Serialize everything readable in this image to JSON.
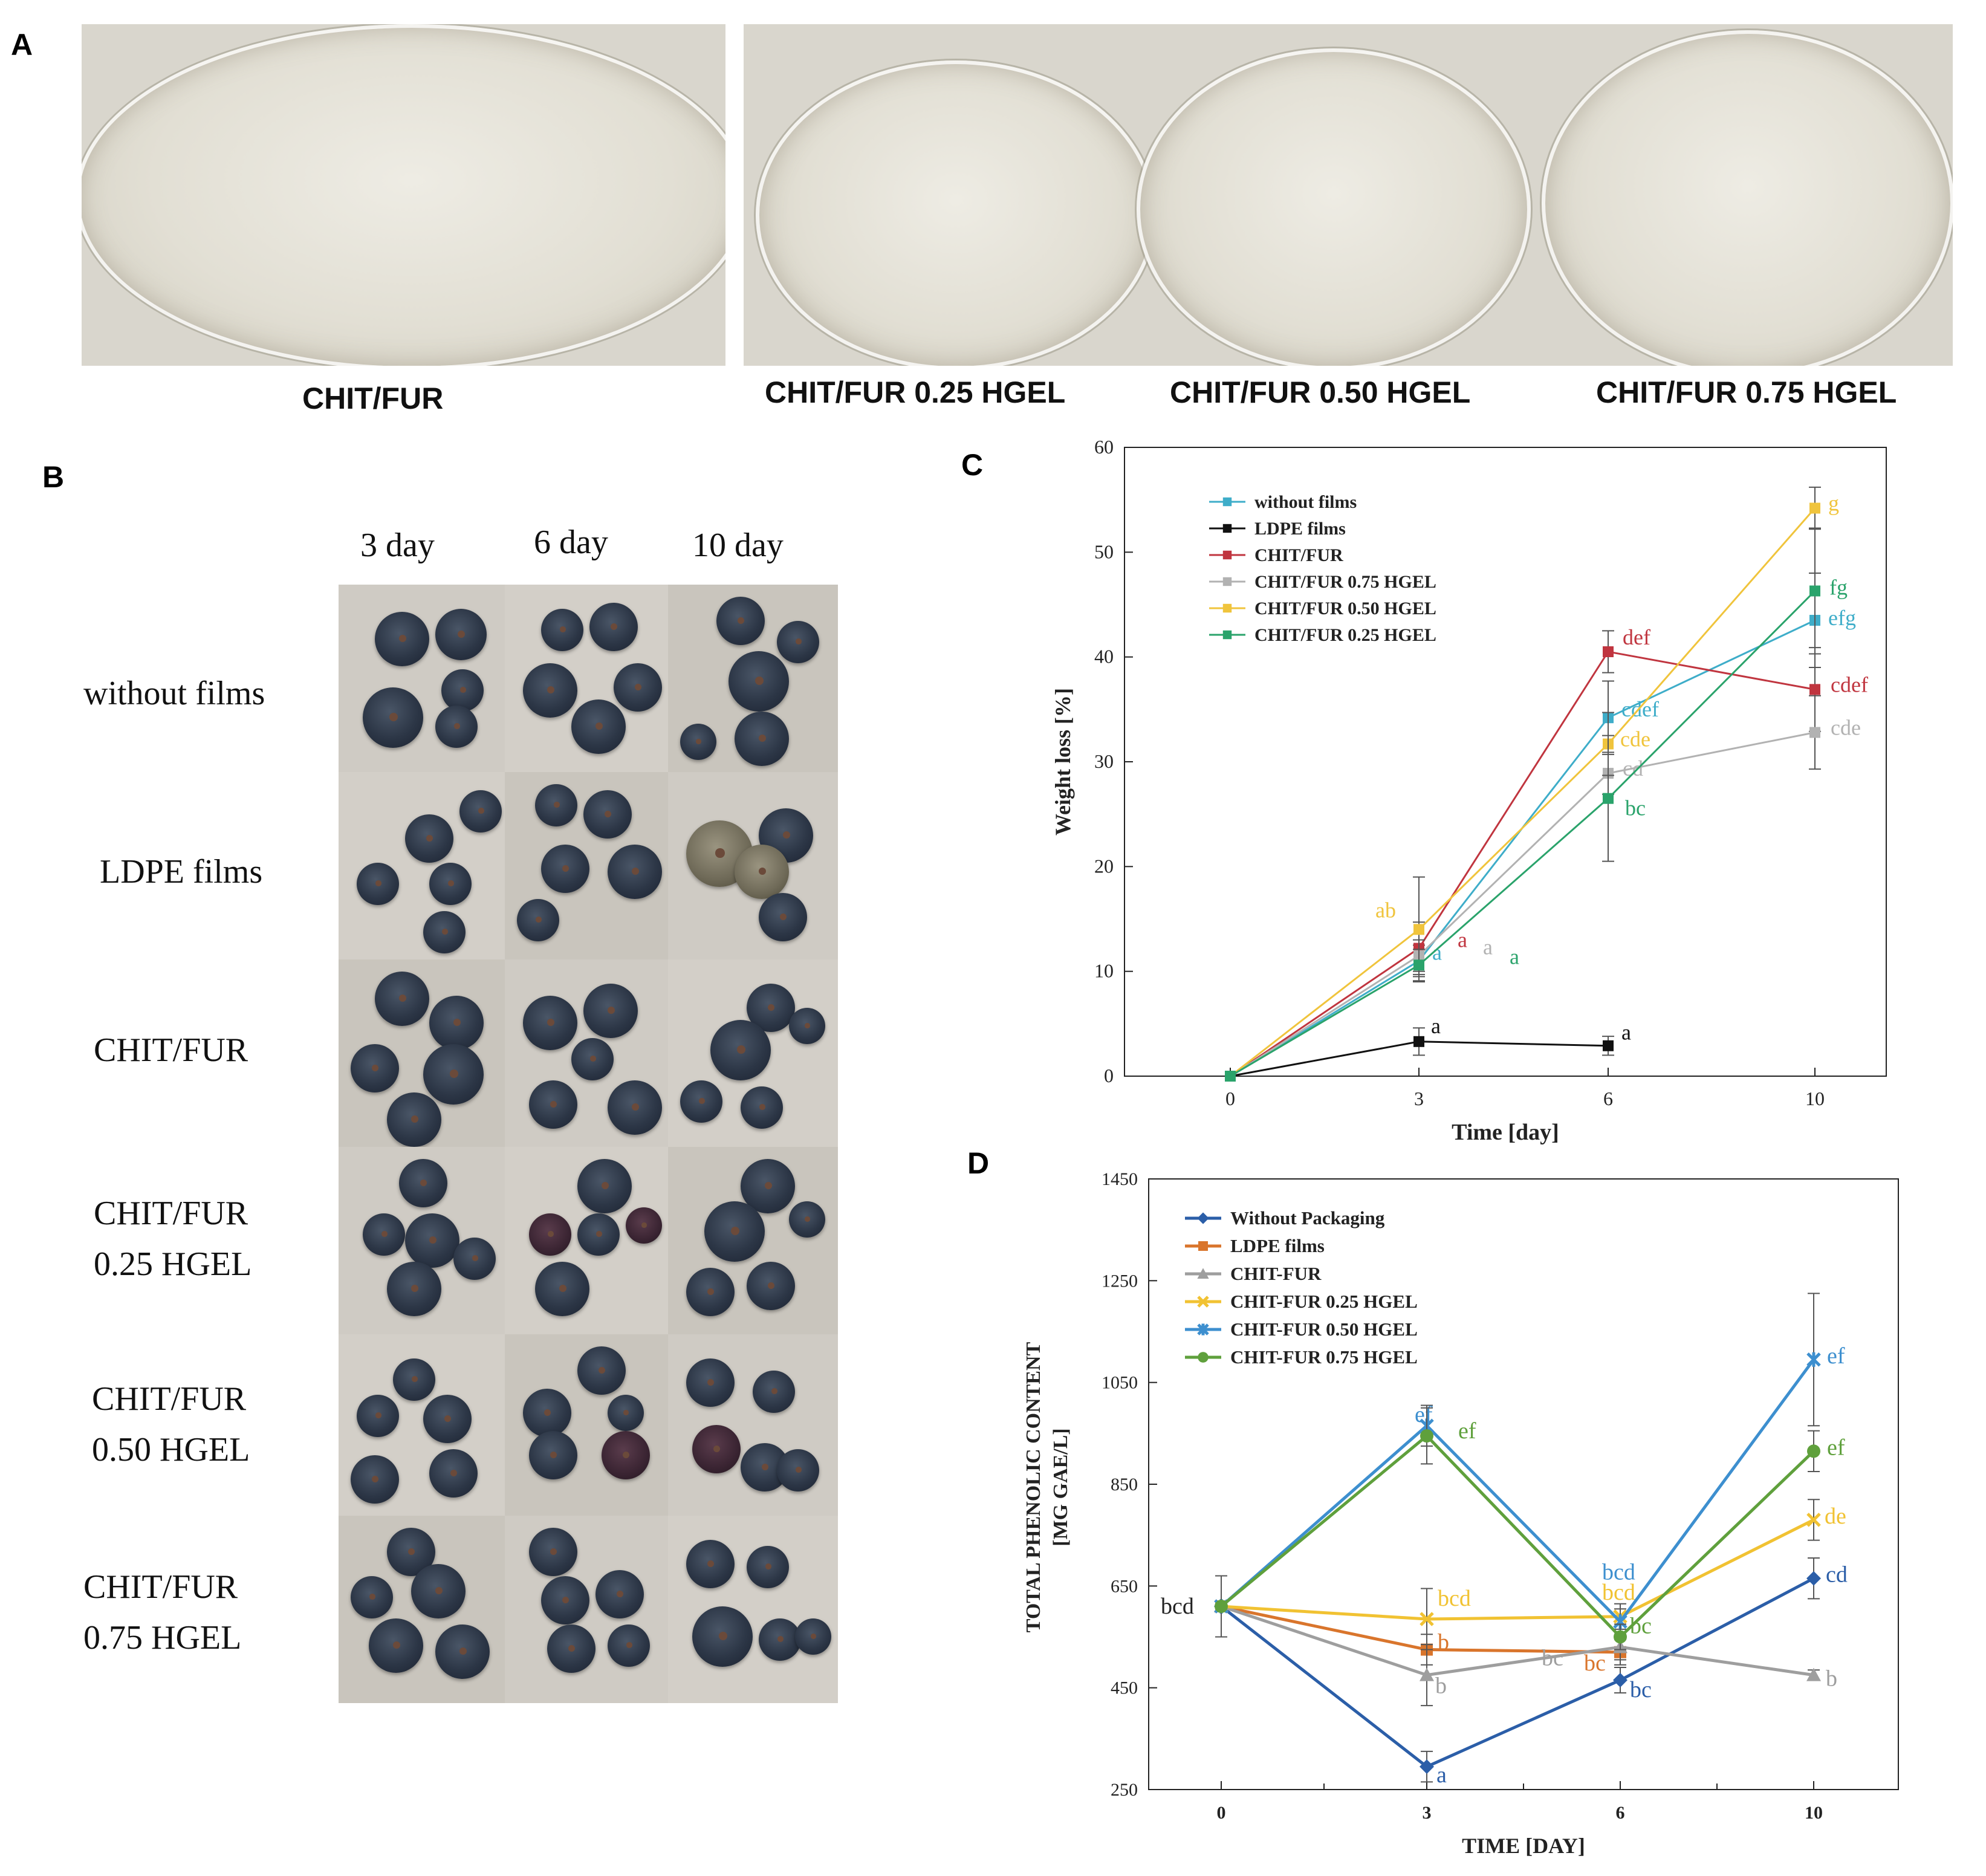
{
  "panels": {
    "a": "A",
    "b": "B",
    "c": "C",
    "d": "D"
  },
  "panel_a": {
    "captions": [
      "CHIT/FUR",
      "CHIT/FUR 0.25 HGEL",
      "CHIT/FUR 0.50 HGEL",
      "CHIT/FUR 0.75 HGEL"
    ]
  },
  "panel_b": {
    "columns": [
      "3 day",
      "6 day",
      "10 day"
    ],
    "rows": [
      {
        "line1": "without films",
        "line2": ""
      },
      {
        "line1": "LDPE films",
        "line2": ""
      },
      {
        "line1": "CHIT/FUR",
        "line2": ""
      },
      {
        "line1": "CHIT/FUR",
        "line2": "0.25 HGEL"
      },
      {
        "line1": "CHIT/FUR",
        "line2": "0.50 HGEL"
      },
      {
        "line1": "CHIT/FUR",
        "line2": "0.75 HGEL"
      }
    ]
  },
  "chart_data": [
    {
      "panel": "C",
      "type": "line",
      "xlabel": "Time  [day]",
      "ylabel": "Weight loss [%]",
      "x": [
        0,
        3,
        6,
        10
      ],
      "xticks": [
        "0",
        "3",
        "6",
        "10"
      ],
      "ylim": [
        0,
        60
      ],
      "yticks": [
        0,
        10,
        20,
        30,
        40,
        50,
        60
      ],
      "legend_position": "top-left",
      "series": [
        {
          "name": "without films",
          "color": "#3eadc9",
          "values": [
            0,
            11,
            34.2,
            43.5
          ],
          "errors": [
            0,
            1.5,
            3.5,
            4.5
          ],
          "labels": [
            "",
            "a",
            "cdef",
            "efg"
          ]
        },
        {
          "name": "LDPE films",
          "color": "#111111",
          "values": [
            0,
            3.3,
            2.9,
            null
          ],
          "errors": [
            0,
            1.3,
            0.9,
            0
          ],
          "labels": [
            "",
            "a",
            "a",
            ""
          ]
        },
        {
          "name": "CHIT/FUR",
          "color": "#c0353f",
          "values": [
            0,
            12.2,
            40.5,
            36.9
          ],
          "errors": [
            0,
            2.5,
            2,
            4
          ],
          "labels": [
            "",
            "a",
            "def",
            "cdef"
          ]
        },
        {
          "name": "CHIT/FUR  0.75 HGEL",
          "color": "#b2b2b2",
          "values": [
            0,
            11.5,
            28.9,
            32.8
          ],
          "errors": [
            0,
            1.5,
            2,
            3.5
          ],
          "labels": [
            "",
            "a",
            "cd",
            "cde"
          ]
        },
        {
          "name": "CHIT/FUR  0.50 HGEL",
          "color": "#f0c43c",
          "values": [
            0,
            14,
            31.7,
            54.2
          ],
          "errors": [
            0,
            5,
            3,
            2
          ],
          "labels": [
            "",
            "ab",
            "cde",
            "g"
          ]
        },
        {
          "name": "CHIT/FUR  0.25 HGEL",
          "color": "#2aa36b",
          "values": [
            0,
            10.6,
            26.5,
            46.3
          ],
          "errors": [
            0,
            1.5,
            6,
            6
          ],
          "labels": [
            "",
            "a",
            "bc",
            "fg"
          ]
        }
      ]
    },
    {
      "panel": "D",
      "type": "line",
      "xlabel": "TIME  [DAY]",
      "ylabel_line1": "TOTAL  PHENOLIC  CONTENT",
      "ylabel_line2": "[MG  GAE/L]",
      "x": [
        0,
        3,
        6,
        10
      ],
      "xticks": [
        "0",
        "3",
        "6",
        "10"
      ],
      "ylim": [
        250,
        1450
      ],
      "yticks": [
        250,
        450,
        650,
        850,
        1050,
        1250,
        1450
      ],
      "legend_position": "top-left",
      "start_label": "bcd",
      "series": [
        {
          "name": "Without Packaging",
          "color": "#2b5ea8",
          "marker": "diamond",
          "values": [
            610,
            295,
            465,
            665
          ],
          "errors": [
            60,
            30,
            25,
            40
          ],
          "labels": [
            "",
            "a",
            "bc",
            "cd"
          ]
        },
        {
          "name": "LDPE films",
          "color": "#d9752c",
          "marker": "square",
          "values": [
            610,
            525,
            520,
            null
          ],
          "errors": [
            60,
            30,
            25,
            0
          ],
          "labels": [
            "",
            "b",
            "bc",
            ""
          ]
        },
        {
          "name": "CHIT-FUR",
          "color": "#9e9e9e",
          "marker": "triangle",
          "values": [
            610,
            475,
            530,
            475
          ],
          "errors": [
            60,
            60,
            25,
            10
          ],
          "labels": [
            "",
            "b",
            "bc",
            "b"
          ]
        },
        {
          "name": "CHIT-FUR  0.25 HGEL",
          "color": "#f1c232",
          "marker": "x",
          "values": [
            610,
            585,
            590,
            780
          ],
          "errors": [
            60,
            60,
            25,
            40
          ],
          "labels": [
            "",
            "bcd",
            "bcd",
            "de"
          ]
        },
        {
          "name": "CHIT-FUR  0.50 HGEL",
          "color": "#3d8fcf",
          "marker": "star",
          "values": [
            610,
            965,
            580,
            1095
          ],
          "errors": [
            60,
            40,
            25,
            130
          ],
          "labels": [
            "",
            "ef",
            "bcd",
            "ef"
          ]
        },
        {
          "name": "CHIT-FUR  0.75 HGEL",
          "color": "#5fa03c",
          "marker": "circle",
          "values": [
            610,
            945,
            550,
            915
          ],
          "errors": [
            60,
            55,
            25,
            40
          ],
          "labels": [
            "",
            "ef",
            "bc",
            "ef"
          ]
        }
      ]
    }
  ]
}
